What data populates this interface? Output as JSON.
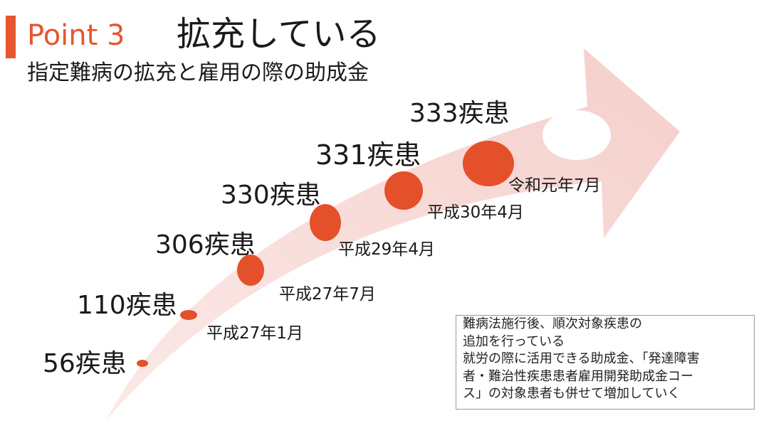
{
  "header": {
    "point": "Point 3",
    "title": "拡充している",
    "subtitle": "指定難病の拡充と雇用の際の助成金"
  },
  "milestones": [
    {
      "label": "56疾患",
      "date": null
    },
    {
      "label": "110疾患",
      "date": "平成27年1月"
    },
    {
      "label": "306疾患",
      "date": "平成27年7月"
    },
    {
      "label": "330疾患",
      "date": "平成29年4月"
    },
    {
      "label": "331疾患",
      "date": "平成30年4月"
    },
    {
      "label": "333疾患",
      "date": "令和元年7月"
    }
  ],
  "note": {
    "lines": [
      "難病法施行後、順次対象疾患の",
      "追加を行っている",
      "就労の際に活用できる助成金、「発達障害",
      "者・難治性疾患患者雇用開発助成金コー",
      "ス」の対象患者も併せて増加していく"
    ]
  }
}
